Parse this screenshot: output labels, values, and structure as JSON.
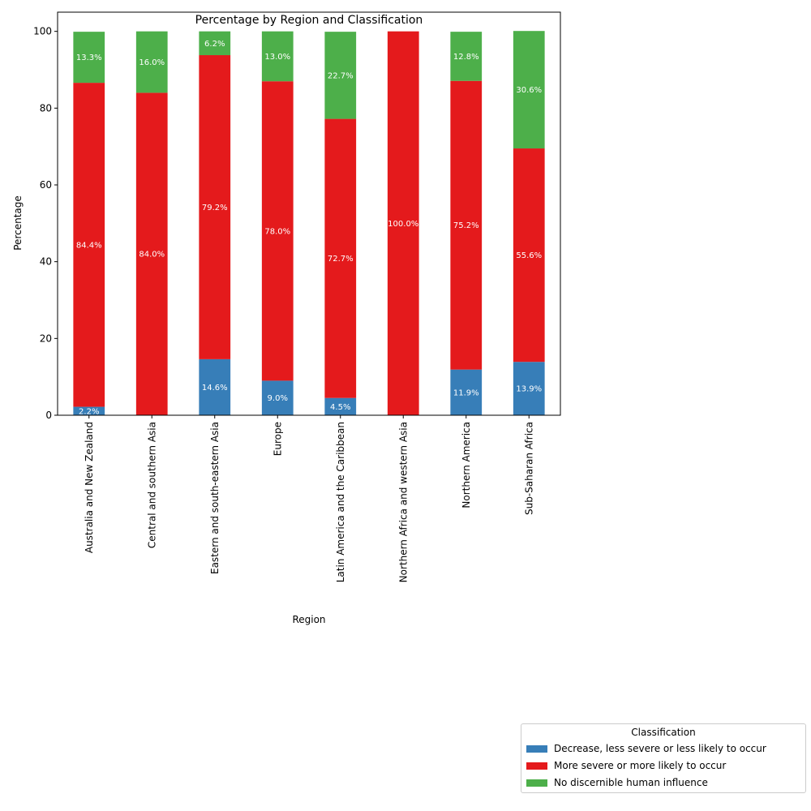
{
  "chart_data": {
    "type": "bar",
    "stacked": true,
    "title": "Percentage by Region and Classification",
    "xlabel": "Region",
    "ylabel": "Percentage",
    "ylim": [
      0,
      105
    ],
    "yticks": [
      0,
      20,
      40,
      60,
      80,
      100
    ],
    "categories": [
      "Australia and New Zealand",
      "Central and southern Asia",
      "Eastern and south-eastern Asia",
      "Europe",
      "Latin America and the Caribbean",
      "Northern Africa and western Asia",
      "Northern America",
      "Sub-Saharan Africa"
    ],
    "series": [
      {
        "name": "Decrease, less severe or less likely to occur",
        "color": "#377eb8",
        "values": [
          2.2,
          0,
          14.6,
          9.0,
          4.5,
          0,
          11.9,
          13.9
        ]
      },
      {
        "name": "More severe or more likely to occur",
        "color": "#e41a1c",
        "values": [
          84.4,
          84.0,
          79.2,
          78.0,
          72.7,
          100.0,
          75.2,
          55.6
        ]
      },
      {
        "name": "No discernible human influence",
        "color": "#4daf4a",
        "values": [
          13.3,
          16.0,
          6.2,
          13.0,
          22.7,
          0,
          12.8,
          30.6
        ]
      }
    ],
    "legend": {
      "title": "Classification",
      "position": "bottom-right outside"
    },
    "grid": false
  }
}
